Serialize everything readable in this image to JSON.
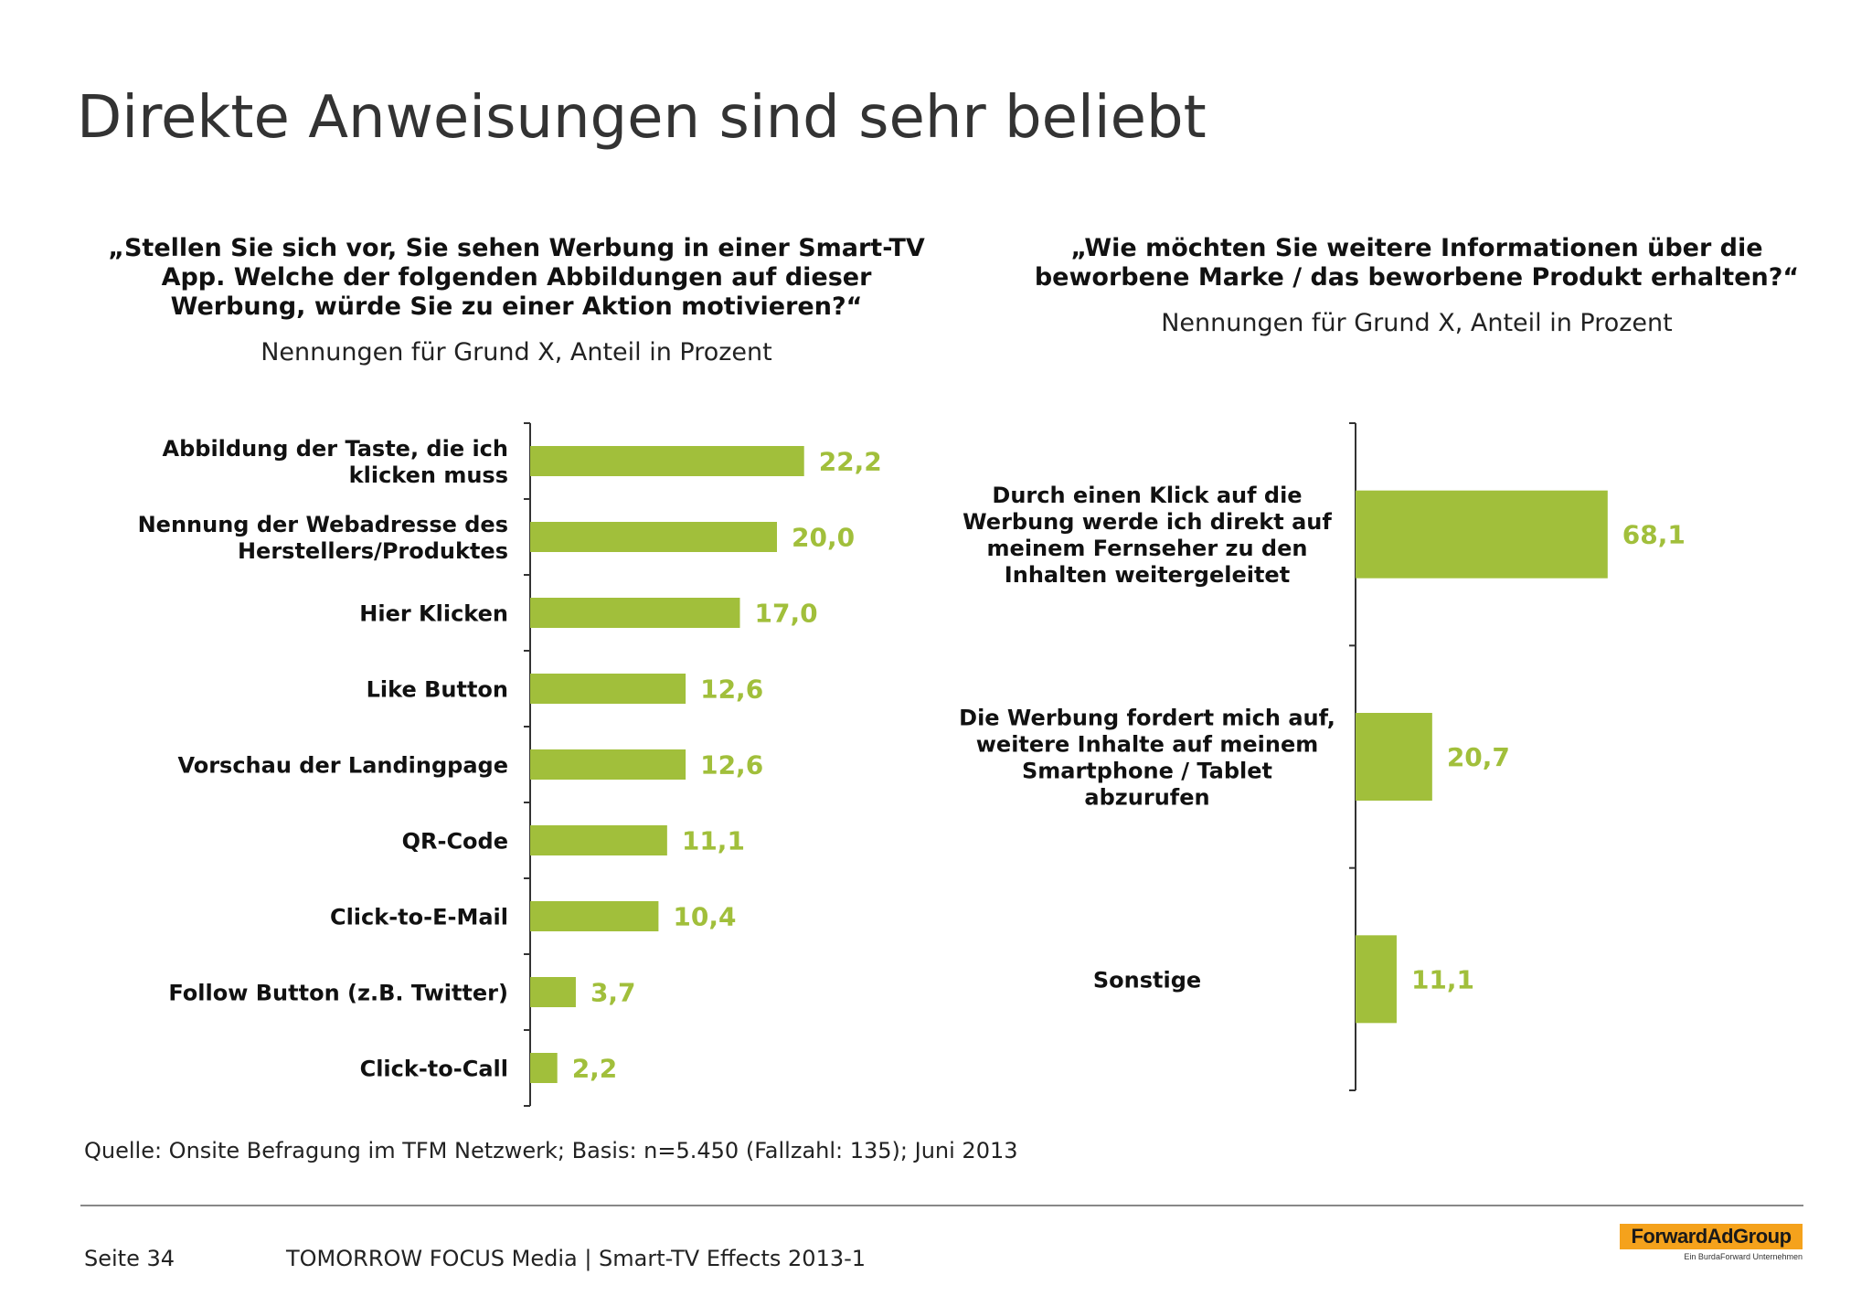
{
  "title": "Direkte Anweisungen sind sehr beliebt",
  "left": {
    "question_lines": [
      "„Stellen Sie sich vor, Sie sehen Werbung in einer Smart-TV",
      "App. Welche der folgenden Abbildungen auf dieser",
      "Werbung, würde Sie zu einer Aktion motivieren?“"
    ],
    "subtitle": "Nennungen für Grund X, Anteil in Prozent"
  },
  "right": {
    "question_lines": [
      "„Wie möchten Sie weitere Informationen über die",
      "beworbene Marke / das beworbene Produkt erhalten?“"
    ],
    "subtitle": "Nennungen für Grund X, Anteil in Prozent"
  },
  "chart_data": [
    {
      "type": "bar",
      "orientation": "horizontal",
      "categories": [
        [
          "Abbildung der Taste, die ich",
          "klicken muss"
        ],
        [
          "Nennung der Webadresse des",
          "Herstellers/Produktes"
        ],
        [
          "Hier Klicken"
        ],
        [
          "Like Button"
        ],
        [
          "Vorschau der Landingpage"
        ],
        [
          "QR-Code"
        ],
        [
          "Click-to-E-Mail"
        ],
        [
          "Follow Button (z.B. Twitter)"
        ],
        [
          "Click-to-Call"
        ]
      ],
      "values": [
        22.2,
        20.0,
        17.0,
        12.6,
        12.6,
        11.1,
        10.4,
        3.7,
        2.2
      ],
      "value_labels": [
        "22,2",
        "20,0",
        "17,0",
        "12,6",
        "12,6",
        "11,1",
        "10,4",
        "3,7",
        "2,2"
      ],
      "xlim": [
        0,
        70
      ],
      "grid": false
    },
    {
      "type": "bar",
      "orientation": "horizontal",
      "categories": [
        [
          "Durch einen Klick auf die",
          "Werbung werde ich direkt auf",
          "meinem Fernseher zu den",
          "Inhalten weitergeleitet"
        ],
        [
          "Die Werbung fordert mich auf,",
          "weitere Inhalte auf meinem",
          "Smartphone / Tablet",
          "abzurufen"
        ],
        [
          "Sonstige"
        ]
      ],
      "values": [
        68.1,
        20.7,
        11.1
      ],
      "value_labels": [
        "68,1",
        "20,7",
        "11,1"
      ],
      "xlim": [
        0,
        70
      ],
      "grid": false
    }
  ],
  "colors": {
    "bar": "#a1bf3b",
    "value_label": "#a1bf3b",
    "axis": "#333333"
  },
  "source": "Quelle: Onsite Befragung im TFM Netzwerk; Basis: n=5.450 (Fallzahl: 135); Juni 2013",
  "footer": {
    "page": "Seite 34",
    "text": "TOMORROW FOCUS Media  |  Smart-TV Effects 2013-1"
  },
  "logo": {
    "name": "ForwardAdGroup",
    "tagline": "Ein BurdaForward Unternehmen"
  }
}
